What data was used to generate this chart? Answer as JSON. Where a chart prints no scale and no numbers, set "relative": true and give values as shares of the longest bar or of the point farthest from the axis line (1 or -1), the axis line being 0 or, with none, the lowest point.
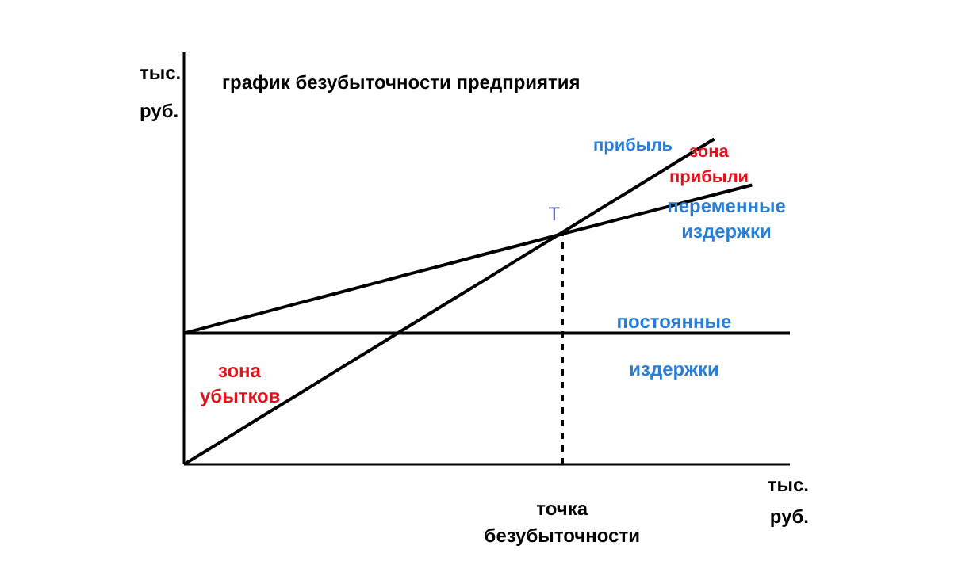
{
  "chart_data": {
    "type": "line",
    "title": "график безубыточности предприятия",
    "xlabel": "тыс. руб.",
    "ylabel": "тыс. руб.",
    "relative": true,
    "marker": "none",
    "categories": [
      null,
      null,
      null,
      null,
      null,
      null,
      null,
      null,
      null,
      null,
      null,
      null,
      null,
      null,
      null,
      null,
      null
    ],
    "series": [
      {
        "name": "прибыль",
        "color": "#000000",
        "values": [
          0,
          0.071,
          0.143,
          0.214,
          0.286,
          0.357,
          0.429,
          0.5,
          0.571,
          0.643,
          0.714,
          0.786,
          0.857,
          0.929,
          1,
          null,
          null
        ]
      },
      {
        "name": "переменные издержки",
        "color": "#000000",
        "values": [
          0.403,
          0.434,
          0.464,
          0.495,
          0.525,
          0.556,
          0.587,
          0.617,
          0.648,
          0.678,
          0.709,
          0.739,
          0.769,
          0.799,
          0.829,
          0.859,
          null
        ]
      },
      {
        "name": "постоянные издержки",
        "color": "#000000",
        "values": [
          0.403,
          0.403,
          0.403,
          0.403,
          0.403,
          0.403,
          0.403,
          0.403,
          0.403,
          0.403,
          0.403,
          0.403,
          0.403,
          0.403,
          0.403,
          0.403,
          0.403
        ]
      }
    ],
    "annotations": [
      "T",
      "зона прибыли",
      "зона убытков",
      "точка безубыточности"
    ]
  }
}
